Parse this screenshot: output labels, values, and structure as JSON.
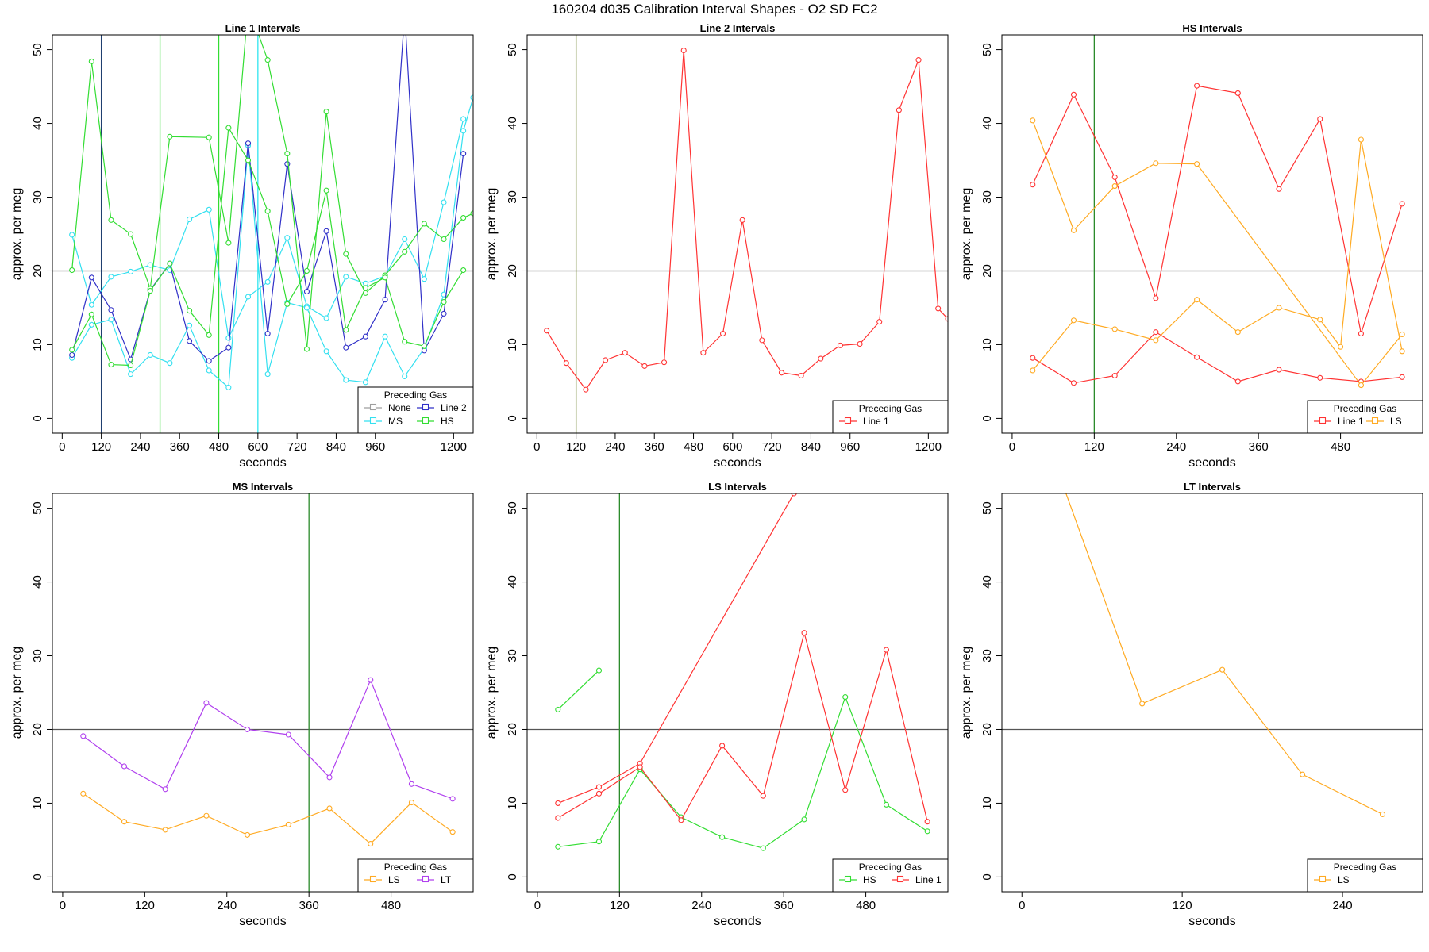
{
  "figure": {
    "title": "160204   d035   Calibration Interval Shapes - O2 SD FC2",
    "legend_title": "Preceding Gas",
    "xlabel": "seconds",
    "ylabel": "approx. per meg"
  },
  "colors": {
    "None": "#9e9e9e",
    "Line 1": "#ff3333",
    "Line 2": "#3030c8",
    "MS": "#33e0f0",
    "HS": "#33dd33",
    "LS": "#ffaa22",
    "LT": "#b040ee",
    "vline_green": "#2a8a2a",
    "vline_cyan": "#30e6f0",
    "vline_bright": "#33dd33",
    "vline_navy": "#1f3f6f",
    "vline_olive": "#5a6e10",
    "hline": "#555555"
  },
  "chart_data": [
    {
      "type": "line",
      "title": "Line 1 Intervals",
      "xlabel": "seconds",
      "ylabel": "approx. per meg",
      "xlim": [
        -30,
        1260
      ],
      "ylim": [
        -2,
        52
      ],
      "xticks": [
        0,
        120,
        240,
        360,
        480,
        600,
        720,
        840,
        960,
        1200
      ],
      "yticks": [
        0,
        10,
        20,
        30,
        40,
        50
      ],
      "hline": 20,
      "vlines": [
        {
          "x": 120,
          "color": "vline_navy"
        },
        {
          "x": 300,
          "color": "vline_bright"
        },
        {
          "x": 480,
          "color": "vline_bright"
        },
        {
          "x": 600,
          "color": "vline_cyan"
        }
      ],
      "legend": {
        "position": "bottom-right",
        "columns": 2,
        "entries": [
          "None",
          "Line 2",
          "MS",
          "HS"
        ]
      },
      "series": [
        {
          "name": "MS",
          "x": [
            30,
            90,
            150,
            210,
            270,
            330,
            390,
            450,
            510,
            570,
            630,
            690,
            750,
            810,
            870,
            930,
            990,
            1050,
            1110,
            1170,
            1230
          ],
          "y": [
            24.9,
            15.4,
            19.2,
            19.9,
            20.8,
            20.1,
            27.0,
            28.3,
            10.9,
            16.5,
            18.5,
            24.5,
            15.2,
            13.6,
            19.2,
            18.3,
            19.3,
            24.3,
            18.9,
            29.3,
            40.6
          ]
        },
        {
          "name": "MS",
          "x": [
            30,
            90,
            150,
            210,
            270,
            330,
            390,
            450,
            510,
            570,
            630,
            690,
            750,
            810,
            870,
            930,
            990,
            1050,
            1110,
            1170,
            1230,
            1260
          ],
          "y": [
            8.2,
            12.7,
            13.4,
            6.0,
            8.6,
            7.5,
            12.6,
            6.5,
            4.2,
            37.0,
            6.0,
            15.7,
            15.0,
            9.1,
            5.2,
            4.9,
            11.1,
            5.7,
            9.5,
            16.8,
            39.0,
            43.5
          ]
        },
        {
          "name": "Line 2",
          "x": [
            30,
            90,
            150,
            210,
            270,
            330,
            390,
            450,
            510,
            570,
            630,
            690,
            750,
            810,
            870,
            930,
            990,
            1050,
            1110,
            1170,
            1230
          ],
          "y": [
            8.6,
            19.1,
            14.7,
            8.0,
            17.4,
            21.0,
            10.5,
            7.8,
            9.6,
            37.3,
            11.5,
            34.5,
            17.2,
            25.4,
            9.6,
            11.1,
            16.1,
            55.0,
            9.2,
            14.2,
            35.9
          ]
        },
        {
          "name": "HS",
          "x": [
            30,
            90,
            150,
            210,
            270,
            330,
            450,
            510,
            570,
            630,
            690,
            750,
            810,
            870,
            930,
            990,
            1050,
            1110,
            1170,
            1230,
            1260
          ],
          "y": [
            20.1,
            48.4,
            26.9,
            25.0,
            17.6,
            38.2,
            38.1,
            23.8,
            56.0,
            48.6,
            35.9,
            9.4,
            41.6,
            22.3,
            17.0,
            19.4,
            22.6,
            26.4,
            24.3,
            27.2,
            27.8
          ]
        },
        {
          "name": "HS",
          "x": [
            30,
            90,
            150,
            210,
            270,
            330,
            390,
            450,
            510,
            570,
            630,
            690,
            750,
            810,
            870,
            930,
            990,
            1050,
            1110,
            1170,
            1230
          ],
          "y": [
            9.3,
            14.1,
            7.3,
            7.2,
            17.3,
            21.0,
            14.6,
            11.3,
            39.4,
            35.0,
            28.1,
            15.5,
            20.0,
            30.9,
            12.0,
            17.7,
            19.1,
            10.4,
            9.8,
            15.8,
            20.1
          ]
        }
      ]
    },
    {
      "type": "line",
      "title": "Line 2 Intervals",
      "xlabel": "seconds",
      "ylabel": "approx. per meg",
      "xlim": [
        -30,
        1260
      ],
      "ylim": [
        -2,
        52
      ],
      "xticks": [
        0,
        120,
        240,
        360,
        480,
        600,
        720,
        840,
        960,
        1200
      ],
      "yticks": [
        0,
        10,
        20,
        30,
        40,
        50
      ],
      "hline": 20,
      "vlines": [
        {
          "x": 120,
          "color": "vline_olive"
        }
      ],
      "legend": {
        "position": "bottom-right",
        "columns": 1,
        "entries": [
          "Line 1"
        ]
      },
      "series": [
        {
          "name": "Line 1",
          "x": [
            30,
            90,
            150,
            210,
            270,
            330,
            390,
            450,
            510,
            570,
            630,
            690,
            750,
            810,
            870,
            930,
            990,
            1050,
            1110,
            1170,
            1230,
            1260
          ],
          "y": [
            11.9,
            7.5,
            3.9,
            7.9,
            8.9,
            7.1,
            7.6,
            49.9,
            8.9,
            11.5,
            26.9,
            10.6,
            6.2,
            5.8,
            8.1,
            9.9,
            10.1,
            13.1,
            41.8,
            48.6,
            14.9,
            13.5
          ]
        }
      ]
    },
    {
      "type": "line",
      "title": "HS Intervals",
      "xlabel": "seconds",
      "ylabel": "approx. per meg",
      "xlim": [
        -15,
        600
      ],
      "ylim": [
        -2,
        52
      ],
      "xticks": [
        0,
        120,
        240,
        360,
        480
      ],
      "yticks": [
        0,
        10,
        20,
        30,
        40,
        50
      ],
      "hline": 20,
      "vlines": [
        {
          "x": 120,
          "color": "vline_green"
        }
      ],
      "legend": {
        "position": "bottom-right",
        "columns": 2,
        "entries": [
          "Line 1",
          "LS"
        ]
      },
      "series": [
        {
          "name": "Line 1",
          "x": [
            30,
            90,
            150,
            210,
            270,
            330,
            390,
            450,
            510,
            570
          ],
          "y": [
            31.7,
            43.9,
            32.7,
            16.3,
            45.1,
            44.1,
            31.1,
            40.6,
            11.5,
            29.1
          ]
        },
        {
          "name": "Line 1",
          "x": [
            30,
            90,
            150,
            210,
            270,
            330,
            390,
            450,
            510,
            570
          ],
          "y": [
            8.2,
            4.8,
            5.8,
            11.7,
            8.3,
            5.0,
            6.6,
            5.5,
            5.0,
            5.6
          ]
        },
        {
          "name": "LS",
          "x": [
            30,
            90,
            150,
            210,
            270,
            510,
            570
          ],
          "y": [
            40.4,
            25.5,
            31.5,
            34.6,
            34.5,
            4.5,
            11.4
          ]
        },
        {
          "name": "LS",
          "x": [
            30,
            90,
            150,
            210,
            270,
            330,
            390,
            450,
            480,
            510,
            570
          ],
          "y": [
            6.5,
            13.3,
            12.1,
            10.6,
            16.1,
            11.7,
            15.0,
            13.4,
            9.7,
            37.8,
            9.1
          ]
        }
      ]
    },
    {
      "type": "line",
      "title": "MS Intervals",
      "xlabel": "seconds",
      "ylabel": "approx. per meg",
      "xlim": [
        -15,
        600
      ],
      "ylim": [
        -2,
        52
      ],
      "xticks": [
        0,
        120,
        240,
        360,
        480
      ],
      "yticks": [
        0,
        10,
        20,
        30,
        40,
        50
      ],
      "hline": 20,
      "vlines": [
        {
          "x": 360,
          "color": "vline_green"
        }
      ],
      "legend": {
        "position": "bottom-right",
        "columns": 2,
        "entries": [
          "LS",
          "LT"
        ]
      },
      "series": [
        {
          "name": "LT",
          "x": [
            30,
            90,
            150,
            210,
            270,
            330,
            390,
            450,
            510,
            570
          ],
          "y": [
            19.1,
            15.0,
            11.9,
            23.6,
            20.0,
            19.3,
            13.5,
            26.7,
            12.6,
            10.6
          ]
        },
        {
          "name": "LS",
          "x": [
            30,
            90,
            150,
            210,
            270,
            330,
            390,
            450,
            510,
            570
          ],
          "y": [
            11.3,
            7.5,
            6.4,
            8.3,
            5.7,
            7.1,
            9.3,
            4.5,
            10.1,
            6.1
          ]
        }
      ]
    },
    {
      "type": "line",
      "title": "LS Intervals",
      "xlabel": "seconds",
      "ylabel": "approx. per meg",
      "xlim": [
        -15,
        600
      ],
      "ylim": [
        -2,
        52
      ],
      "xticks": [
        0,
        120,
        240,
        360,
        480
      ],
      "yticks": [
        0,
        10,
        20,
        30,
        40,
        50
      ],
      "hline": 20,
      "vlines": [
        {
          "x": 120,
          "color": "vline_green"
        }
      ],
      "legend": {
        "position": "bottom-right",
        "columns": 2,
        "entries": [
          "HS",
          "Line 1"
        ]
      },
      "series": [
        {
          "name": "HS",
          "x": [
            30,
            90
          ],
          "y": [
            22.7,
            28.0
          ]
        },
        {
          "name": "HS",
          "x": [
            30,
            90,
            150,
            210,
            270,
            330,
            390,
            450,
            510,
            570
          ],
          "y": [
            4.1,
            4.8,
            14.6,
            8.1,
            5.4,
            3.9,
            7.8,
            24.4,
            9.8,
            6.2
          ]
        },
        {
          "name": "Line 1",
          "x": [
            30,
            90,
            150,
            375
          ],
          "y": [
            10.0,
            12.2,
            15.4,
            52.0
          ]
        },
        {
          "name": "Line 1",
          "x": [
            30,
            90,
            150,
            210,
            270,
            330,
            390,
            450,
            510,
            570
          ],
          "y": [
            8.0,
            11.3,
            14.9,
            7.7,
            17.8,
            11.0,
            33.1,
            11.8,
            30.8,
            7.5
          ]
        }
      ]
    },
    {
      "type": "line",
      "title": "LT Intervals",
      "xlabel": "seconds",
      "ylabel": "approx. per meg",
      "xlim": [
        -15,
        300
      ],
      "ylim": [
        -2,
        52
      ],
      "xticks": [
        0,
        120,
        240
      ],
      "yticks": [
        0,
        10,
        20,
        30,
        40,
        50
      ],
      "hline": 20,
      "vlines": [],
      "legend": {
        "position": "bottom-right",
        "columns": 1,
        "entries": [
          "LS"
        ]
      },
      "series": [
        {
          "name": "LS",
          "x": [
            30,
            90,
            150,
            210,
            270
          ],
          "y": [
            53.5,
            23.5,
            28.1,
            13.9,
            8.5
          ]
        }
      ]
    }
  ]
}
